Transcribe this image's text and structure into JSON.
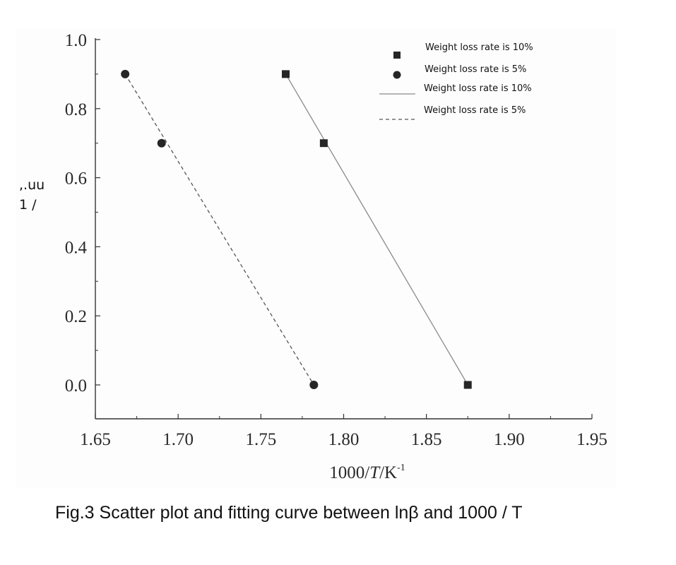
{
  "chart_data": {
    "type": "scatter",
    "xlabel": "1000/T/K-1",
    "xlabel_parts": {
      "pre": "1000/",
      "italic": "T",
      "mid": "/K",
      "sup": "-1"
    },
    "ylabel_lines": [
      ",.uu",
      "1 /"
    ],
    "xlim": [
      1.65,
      1.95
    ],
    "ylim": [
      0.0,
      1.0
    ],
    "x_ticks": [
      "1.65",
      "1.70",
      "1.75",
      "1.80",
      "1.85",
      "1.90",
      "1.95"
    ],
    "y_ticks": [
      "1.0",
      "0.8",
      "0.6",
      "0.4",
      "0.2",
      "0.0"
    ],
    "grid": false,
    "legend_position": "top-right",
    "series": [
      {
        "name": "Weight loss rate is 10%",
        "marker": "square",
        "x": [
          1.765,
          1.788,
          1.875
        ],
        "y": [
          0.9,
          0.7,
          0.0
        ]
      },
      {
        "name": "Weight loss rate is 5%",
        "marker": "circle",
        "x": [
          1.668,
          1.69,
          1.782
        ],
        "y": [
          0.9,
          0.7,
          0.0
        ]
      }
    ],
    "fits": [
      {
        "name": "Weight loss rate is 10%",
        "style": "solid",
        "x": [
          1.765,
          1.875
        ],
        "y": [
          0.9,
          0.0
        ]
      },
      {
        "name": "Weight loss rate is 5%",
        "style": "dashed",
        "x": [
          1.668,
          1.782
        ],
        "y": [
          0.9,
          0.0
        ]
      }
    ],
    "colors": {
      "marker": "#262626",
      "fit_line": "#8a8a8a",
      "axis": "#333333"
    }
  },
  "caption": "Fig.3 Scatter plot and fitting curve between lnβ and 1000 / T"
}
